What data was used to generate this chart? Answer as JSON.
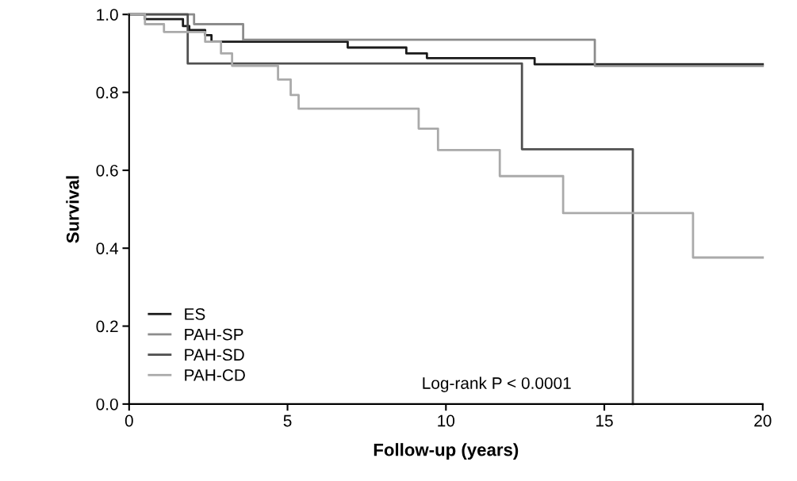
{
  "chart_data": {
    "type": "step",
    "xlabel": "Follow-up (years)",
    "ylabel": "Survival",
    "xlim": [
      0,
      20
    ],
    "ylim": [
      0,
      1.0
    ],
    "xticks": [
      0,
      5,
      10,
      15,
      20
    ],
    "yticks": [
      {
        "value": 0,
        "label": "0.0"
      },
      {
        "value": 0.2,
        "label": "0.2"
      },
      {
        "value": 0.4,
        "label": "0.4"
      },
      {
        "value": 0.6,
        "label": "0.6"
      },
      {
        "value": 0.8,
        "label": "0.8"
      },
      {
        "value": 1.0,
        "label": "1.0"
      }
    ],
    "grid": false,
    "legend": "bottom left",
    "marker": "none",
    "line_style": "solid",
    "annotations": [
      "Log-rank P < 0.0001"
    ],
    "series": [
      {
        "name": "ES",
        "color": "#1a1a1a",
        "x": [
          0,
          0.5,
          1.7,
          1.9,
          2.4,
          2.6,
          6.9,
          8.75,
          9.4,
          12.8,
          20
        ],
        "values": [
          1.0,
          0.988,
          0.97,
          0.96,
          0.947,
          0.93,
          0.915,
          0.9,
          0.888,
          0.872,
          0.872
        ]
      },
      {
        "name": "PAH-SP",
        "color": "#8c8c8c",
        "x": [
          0,
          2.05,
          3.6,
          14.7,
          20
        ],
        "values": [
          1.0,
          0.975,
          0.935,
          0.868,
          0.868
        ]
      },
      {
        "name": "PAH-SD",
        "color": "#505050",
        "x": [
          0,
          1.85,
          12.4,
          15.9,
          15.9
        ],
        "values": [
          1.0,
          0.874,
          0.654,
          0.0,
          0.0
        ]
      },
      {
        "name": "PAH-CD",
        "color": "#aaaaaa",
        "x": [
          0,
          0.5,
          1.1,
          2.4,
          2.9,
          3.25,
          4.7,
          5.1,
          5.35,
          9.14,
          9.75,
          11.7,
          13.7,
          17.8,
          20
        ],
        "values": [
          1.0,
          0.975,
          0.955,
          0.93,
          0.9,
          0.868,
          0.833,
          0.793,
          0.758,
          0.707,
          0.652,
          0.585,
          0.49,
          0.376,
          0.376
        ]
      }
    ]
  }
}
